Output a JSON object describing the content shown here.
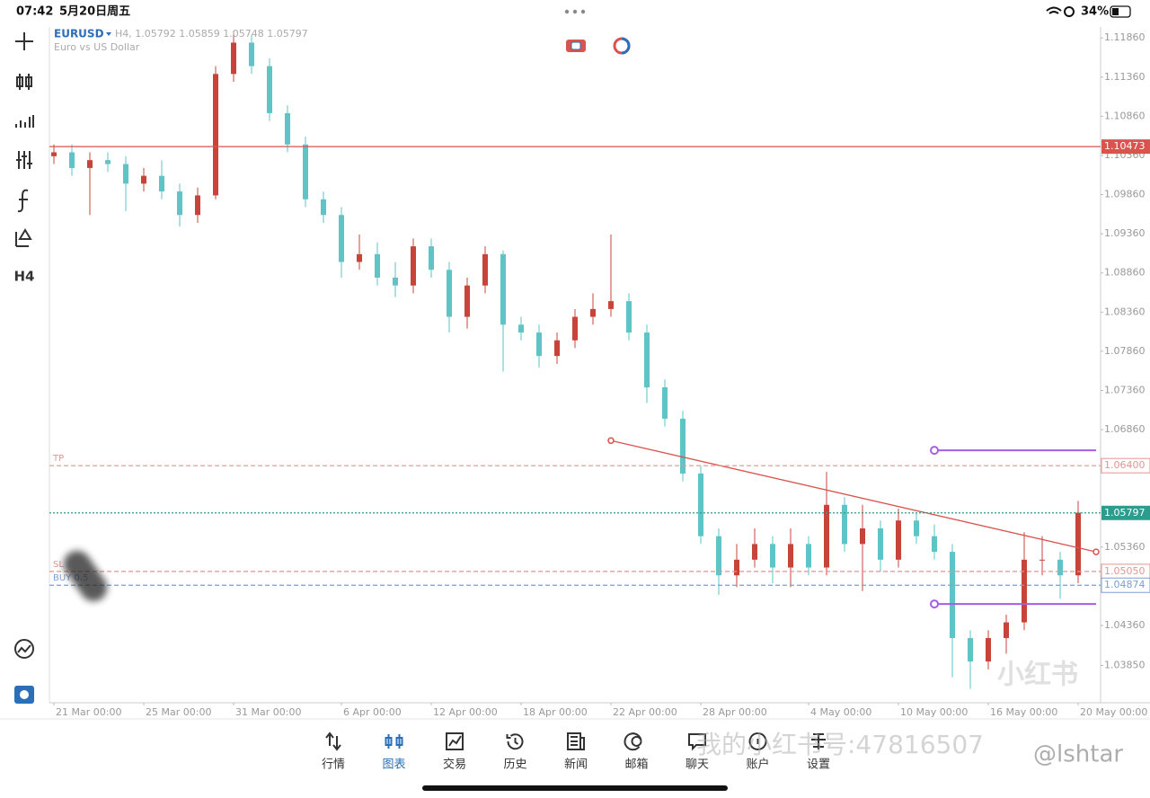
{
  "status_bar": {
    "time": "07:42",
    "date": "5月20日周五",
    "battery": "34%"
  },
  "toolbar": {
    "timeframe": "H4"
  },
  "chart_data": {
    "type": "candlestick",
    "symbol": "EURUSD",
    "info": "H4, 1.05792 1.05859 1.05748 1.05797",
    "description": "Euro vs US Dollar",
    "up_color": "#c8443a",
    "down_color": "#5ec4c6",
    "categories": [
      "21 Mar 00:00",
      null,
      null,
      null,
      null,
      "25 Mar 00:00",
      null,
      null,
      null,
      null,
      "31 Mar 00:00",
      null,
      null,
      null,
      null,
      null,
      "6 Apr 00:00",
      null,
      null,
      null,
      null,
      "12 Apr 00:00",
      null,
      null,
      null,
      null,
      "18 Apr 00:00",
      null,
      null,
      null,
      null,
      "22 Apr 00:00",
      null,
      null,
      null,
      null,
      "28 Apr 00:00",
      null,
      null,
      null,
      null,
      null,
      "4 May 00:00",
      null,
      null,
      null,
      null,
      "10 May 00:00",
      null,
      null,
      null,
      null,
      "16 May 00:00",
      null,
      null,
      null,
      null,
      "20 May 00:00"
    ],
    "candles": [
      [
        1.1035,
        1.105,
        1.1025,
        1.104
      ],
      [
        1.104,
        1.105,
        1.101,
        1.102
      ],
      [
        1.102,
        1.104,
        1.096,
        1.103
      ],
      [
        1.103,
        1.104,
        1.1015,
        1.1025
      ],
      [
        1.1025,
        1.1035,
        1.0965,
        1.1
      ],
      [
        1.1,
        1.102,
        1.099,
        1.101
      ],
      [
        1.101,
        1.103,
        1.098,
        1.099
      ],
      [
        1.099,
        1.1,
        1.0945,
        1.096
      ],
      [
        1.096,
        1.0995,
        1.095,
        1.0985
      ],
      [
        1.0985,
        1.115,
        1.098,
        1.114
      ],
      [
        1.114,
        1.1195,
        1.113,
        1.118
      ],
      [
        1.118,
        1.119,
        1.114,
        1.115
      ],
      [
        1.115,
        1.116,
        1.108,
        1.109
      ],
      [
        1.109,
        1.11,
        1.104,
        1.105
      ],
      [
        1.105,
        1.106,
        1.097,
        1.098
      ],
      [
        1.098,
        1.099,
        1.095,
        1.096
      ],
      [
        1.096,
        1.097,
        1.088,
        1.09
      ],
      [
        1.09,
        1.0935,
        1.089,
        1.091
      ],
      [
        1.091,
        1.0925,
        1.087,
        1.088
      ],
      [
        1.088,
        1.09,
        1.0855,
        1.087
      ],
      [
        1.087,
        1.093,
        1.086,
        1.092
      ],
      [
        1.092,
        1.093,
        1.088,
        1.089
      ],
      [
        1.089,
        1.09,
        1.081,
        1.083
      ],
      [
        1.083,
        1.088,
        1.0815,
        1.087
      ],
      [
        1.087,
        1.092,
        1.086,
        1.091
      ],
      [
        1.091,
        1.0915,
        1.076,
        1.082
      ],
      [
        1.082,
        1.083,
        1.08,
        1.081
      ],
      [
        1.081,
        1.082,
        1.0765,
        1.078
      ],
      [
        1.078,
        1.081,
        1.077,
        1.08
      ],
      [
        1.08,
        1.084,
        1.079,
        1.083
      ],
      [
        1.083,
        1.086,
        1.082,
        1.084
      ],
      [
        1.084,
        1.0935,
        1.083,
        1.085
      ],
      [
        1.085,
        1.086,
        1.08,
        1.081
      ],
      [
        1.081,
        1.082,
        1.072,
        1.074
      ],
      [
        1.074,
        1.075,
        1.069,
        1.07
      ],
      [
        1.07,
        1.071,
        1.062,
        1.063
      ],
      [
        1.063,
        1.064,
        1.054,
        1.055
      ],
      [
        1.055,
        1.056,
        1.0475,
        1.05
      ],
      [
        1.05,
        1.054,
        1.0485,
        1.052
      ],
      [
        1.052,
        1.056,
        1.051,
        1.054
      ],
      [
        1.054,
        1.055,
        1.049,
        1.051
      ],
      [
        1.051,
        1.056,
        1.0485,
        1.054
      ],
      [
        1.054,
        1.055,
        1.05,
        1.051
      ],
      [
        1.051,
        1.0632,
        1.05,
        1.059
      ],
      [
        1.059,
        1.06,
        1.053,
        1.054
      ],
      [
        1.054,
        1.059,
        1.048,
        1.056
      ],
      [
        1.056,
        1.057,
        1.0505,
        1.052
      ],
      [
        1.052,
        1.0585,
        1.051,
        1.057
      ],
      [
        1.057,
        1.058,
        1.054,
        1.055
      ],
      [
        1.055,
        1.0565,
        1.052,
        1.053
      ],
      [
        1.053,
        1.054,
        1.037,
        1.042
      ],
      [
        1.042,
        1.043,
        1.0355,
        1.039
      ],
      [
        1.039,
        1.043,
        1.038,
        1.042
      ],
      [
        1.042,
        1.045,
        1.04,
        1.044
      ],
      [
        1.044,
        1.0555,
        1.043,
        1.052
      ],
      [
        1.052,
        1.055,
        1.05,
        1.052
      ],
      [
        1.052,
        1.053,
        1.047,
        1.05
      ],
      [
        1.05,
        1.0595,
        1.049,
        1.058
      ]
    ],
    "ylim": [
      1.03374,
      1.12
    ],
    "yticks": [
      {
        "value": 1.1186,
        "label": "1.11860"
      },
      {
        "value": 1.1136,
        "label": "1.11360"
      },
      {
        "value": 1.1086,
        "label": "1.10860"
      },
      {
        "value": 1.1036,
        "label": "1.10360"
      },
      {
        "value": 1.0986,
        "label": "1.09860"
      },
      {
        "value": 1.0936,
        "label": "1.09360"
      },
      {
        "value": 1.0886,
        "label": "1.08860"
      },
      {
        "value": 1.0836,
        "label": "1.08360"
      },
      {
        "value": 1.0786,
        "label": "1.07860"
      },
      {
        "value": 1.0736,
        "label": "1.07360"
      },
      {
        "value": 1.0686,
        "label": "1.06860"
      },
      {
        "value": 1.0536,
        "label": "1.05360"
      },
      {
        "value": 1.0436,
        "label": "1.04360"
      },
      {
        "value": 1.0385,
        "label": "1.03850"
      }
    ],
    "levels": [
      {
        "value": 1.10473,
        "style": "solid",
        "color": "#d9534f",
        "box": "filled"
      },
      {
        "value": 1.064,
        "label": "1.06400",
        "tag": "TP",
        "style": "dashed",
        "color": "#e39590",
        "box": "outline"
      },
      {
        "value": 1.05797,
        "style": "dotted",
        "color": "#2a9d8f",
        "box": "filled"
      },
      {
        "value": 1.0505,
        "label": "1.05050",
        "tag": "SL",
        "style": "dashed",
        "color": "#e39590",
        "box": "outline"
      },
      {
        "value": 1.04874,
        "tag": "BUY 0.5",
        "style": "dashed",
        "color": "#7b9fd4",
        "box": "outline"
      }
    ],
    "trendline": {
      "color": "#d9534f",
      "points": [
        [
          31,
          1.0672
        ],
        [
          58,
          1.053
        ]
      ]
    },
    "purple_lines": {
      "color": "#a45ee5",
      "lines": [
        {
          "from": 49,
          "to": 58,
          "value": 1.06596
        },
        {
          "from": 49,
          "to": 58,
          "value": 1.04635
        }
      ]
    }
  },
  "tabs": {
    "items": [
      "行情",
      "图表",
      "交易",
      "历史",
      "新闻",
      "邮箱",
      "聊天",
      "账户",
      "设置"
    ],
    "active": 1
  },
  "watermarks": {
    "account": "我的小红书号:47816507",
    "handle": "@lshtar",
    "logo": "小红书"
  }
}
